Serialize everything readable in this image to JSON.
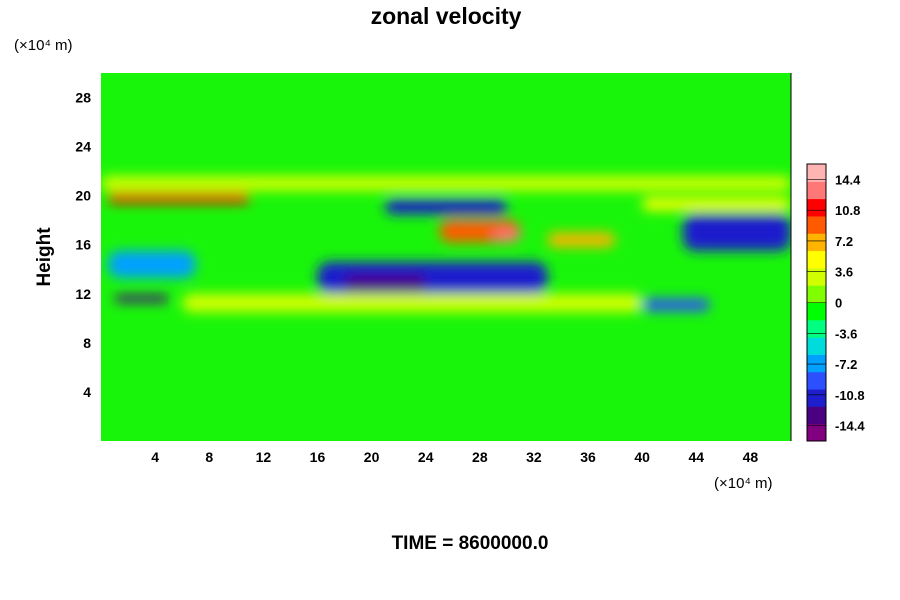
{
  "chart_data": {
    "type": "heatmap",
    "title": "zonal velocity",
    "ylabel": "Height",
    "xunit": "(×10⁴ m)",
    "yunit": "(×10⁴ m)",
    "footer": "TIME = 8600000.0",
    "xlim": [
      0,
      51
    ],
    "ylim": [
      0,
      30
    ],
    "xticks": [
      "4",
      "8",
      "12",
      "16",
      "20",
      "24",
      "28",
      "32",
      "36",
      "40",
      "44",
      "48"
    ],
    "yticks": [
      "4",
      "8",
      "12",
      "16",
      "20",
      "24",
      "28"
    ],
    "colorbar": {
      "ticks": [
        "14.4",
        "10.8",
        "7.2",
        "3.6",
        "0",
        "-3.6",
        "-7.2",
        "-10.8",
        "-14.4"
      ],
      "min": -16.2,
      "max": 16.2,
      "colors": [
        "#800080",
        "#4b0082",
        "#1e1ecd",
        "#2d50ff",
        "#00a0ff",
        "#00dcdc",
        "#00ff80",
        "#00ff00",
        "#80ff00",
        "#d2ff00",
        "#ffff00",
        "#ffb400",
        "#ff5a00",
        "#ff0000",
        "#ff7878",
        "#ffb4b4"
      ]
    },
    "features": [
      {
        "x0": 0.5,
        "x1": 11,
        "y0": 19.4,
        "y1": 20.2,
        "value": 11
      },
      {
        "x0": 21,
        "x1": 30,
        "y0": 18.5,
        "y1": 19.7,
        "value": -12
      },
      {
        "x0": 25,
        "x1": 31,
        "y0": 16.2,
        "y1": 18.0,
        "value": 10
      },
      {
        "x0": 29,
        "x1": 31,
        "y0": 16.3,
        "y1": 17.2,
        "value": 13
      },
      {
        "x0": 33,
        "x1": 38,
        "y0": 15.8,
        "y1": 17.0,
        "value": 8
      },
      {
        "x0": 40,
        "x1": 51,
        "y0": 18.8,
        "y1": 19.8,
        "value": 6
      },
      {
        "x0": 43,
        "x1": 51,
        "y0": 15.5,
        "y1": 18.5,
        "value": -11
      },
      {
        "x0": 0.5,
        "x1": 7,
        "y0": 13.3,
        "y1": 15.5,
        "value": -8
      },
      {
        "x0": 16,
        "x1": 33,
        "y0": 12.0,
        "y1": 14.6,
        "value": -11
      },
      {
        "x0": 18,
        "x1": 24,
        "y0": 12.2,
        "y1": 13.5,
        "value": -14
      },
      {
        "x0": 1,
        "x1": 5,
        "y0": 11.3,
        "y1": 11.9,
        "value": -14
      },
      {
        "x0": 40,
        "x1": 45,
        "y0": 10.6,
        "y1": 11.6,
        "value": -10
      },
      {
        "x0": 6,
        "x1": 40,
        "y0": 10.5,
        "y1": 12.0,
        "value": 4
      },
      {
        "x0": 0,
        "x1": 51,
        "y0": 20.4,
        "y1": 21.6,
        "value": 3
      }
    ]
  }
}
